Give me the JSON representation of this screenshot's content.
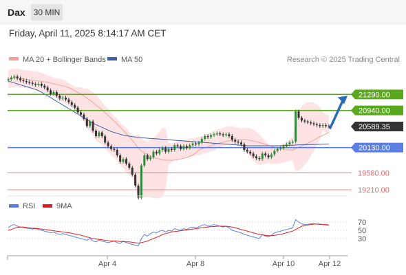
{
  "header": {
    "symbol": "Dax",
    "timeframe": "30 MIN",
    "timestamp": "Friday, April 11, 2025 8:14:17 AM CET"
  },
  "colors": {
    "ma20": "#f4a09b",
    "ma50": "#3c5fa8",
    "bands": "#fde3e3",
    "resistance": "#5aa81e",
    "support_blue": "#5b7fe0",
    "support_red": "#e06666",
    "current": "#333333",
    "candle_up": "#2d8a3a",
    "candle_down": "#333333",
    "arrow": "#2b6cb8",
    "rsi": "#5b7fe0",
    "rsi_ma": "#e02020"
  },
  "chart_data": [
    {
      "type": "line",
      "title": "Dax",
      "legend": [
        {
          "name": "MA 20 + Bollinger Bands",
          "color": "#f4a09b"
        },
        {
          "name": "MA 50",
          "color": "#3c5fa8"
        }
      ],
      "legend_placement": "top-left",
      "credit": "Research © 2025 Trading Central",
      "x_ticks": [
        "Apr 4",
        "Apr 8",
        "Apr 10",
        "Apr 12"
      ],
      "y_range": [
        19150,
        21850
      ],
      "levels": [
        {
          "label": "21290.00",
          "value": 21290,
          "kind": "resistance"
        },
        {
          "label": "20940.00",
          "value": 20940,
          "kind": "resistance"
        },
        {
          "label": "20589.35",
          "value": 20589.35,
          "kind": "current"
        },
        {
          "label": "20130.00",
          "value": 20130,
          "kind": "support_blue"
        },
        {
          "label": "19580.00",
          "value": 19580,
          "kind": "support_red"
        },
        {
          "label": "19210.00",
          "value": 19210,
          "kind": "support_red"
        }
      ],
      "close": [
        21620,
        21660,
        21680,
        21640,
        21600,
        21580,
        21560,
        21540,
        21520,
        21500,
        21520,
        21480,
        21440,
        21380,
        21300,
        21340,
        21260,
        21200,
        21220,
        21180,
        21120,
        21060,
        21000,
        20900,
        20850,
        20760,
        20600,
        20700,
        20500,
        20380,
        20460,
        20380,
        20240,
        20160,
        20100,
        20080,
        19960,
        19820,
        19880,
        19780,
        19690,
        19540,
        19300,
        19040,
        19740,
        19960,
        19880,
        19920,
        20040,
        20000,
        20080,
        20120,
        20040,
        20100,
        20080,
        20180,
        20160,
        20100,
        20160,
        20120,
        20180,
        20220,
        20200,
        20240,
        20320,
        20380,
        20360,
        20400,
        20420,
        20440,
        20420,
        20400,
        20420,
        20380,
        20300,
        20260,
        20240,
        20200,
        20080,
        20040,
        20000,
        19940,
        19900,
        19880,
        20000,
        19960,
        19920,
        19980,
        20060,
        20100,
        20120,
        20160,
        20200,
        20240,
        20260,
        20920,
        20780,
        20720,
        20700,
        20680,
        20660,
        20640,
        20620,
        20600,
        20620,
        20600,
        20590
      ],
      "ma50": [
        21580,
        21560,
        21540,
        21520,
        21500,
        21480,
        21460,
        21440,
        21420,
        21400,
        21370,
        21340,
        21300,
        21260,
        21220,
        21180,
        21140,
        21100,
        21060,
        21020,
        20980,
        20940,
        20900,
        20860,
        20820,
        20780,
        20740,
        20700,
        20660,
        20630,
        20600,
        20570,
        20540,
        20510,
        20480,
        20460,
        20440,
        20420,
        20400,
        20390,
        20380,
        20370,
        20360,
        20350,
        20345,
        20340,
        20335,
        20330,
        20325,
        20320,
        20315,
        20310,
        20305,
        20300,
        20295,
        20290,
        20285,
        20280,
        20275,
        20270,
        20265,
        20260,
        20255,
        20250,
        20245,
        20240,
        20235,
        20230,
        20225,
        20220,
        20215,
        20210,
        20205,
        20200,
        20195,
        20190,
        20185,
        20180,
        20175,
        20170,
        20170,
        20170,
        20170,
        20170,
        20170,
        20170,
        20170,
        20170,
        20170,
        20170,
        20172,
        20175,
        20178,
        20180,
        20182,
        20185,
        20188,
        20190,
        20192,
        20194,
        20196,
        20198,
        20200,
        20202,
        20204,
        20206,
        20208
      ],
      "rsi_ticks": [
        "70",
        "50",
        "30"
      ],
      "rsi_legend": [
        {
          "name": "RSI",
          "color": "#5b7fe0"
        },
        {
          "name": "9MA",
          "color": "#e02020"
        }
      ],
      "rsi": [
        56,
        62,
        64,
        60,
        58,
        57,
        55,
        54,
        53,
        54,
        52,
        50,
        48,
        46,
        44,
        46,
        42,
        40,
        42,
        40,
        38,
        36,
        34,
        32,
        30,
        28,
        26,
        30,
        24,
        22,
        26,
        24,
        22,
        20,
        22,
        24,
        20,
        18,
        24,
        20,
        18,
        16,
        14,
        12,
        30,
        40,
        36,
        42,
        46,
        44,
        48,
        50,
        46,
        50,
        48,
        54,
        52,
        50,
        54,
        52,
        56,
        58,
        56,
        58,
        62,
        64,
        60,
        62,
        64,
        62,
        60,
        58,
        60,
        56,
        50,
        48,
        46,
        44,
        40,
        38,
        36,
        34,
        32,
        30,
        40,
        36,
        34,
        38,
        44,
        46,
        48,
        50,
        52,
        54,
        56,
        76,
        70,
        66,
        64,
        64,
        66,
        66,
        65,
        64,
        64,
        63,
        62
      ],
      "rsi_ma": [
        50,
        52,
        55,
        57,
        58,
        58,
        57,
        56,
        55,
        55,
        54,
        53,
        52,
        51,
        50,
        49,
        48,
        47,
        46,
        45,
        44,
        43,
        41,
        40,
        38,
        36,
        34,
        32,
        30,
        29,
        28,
        27,
        26,
        25,
        24,
        24,
        24,
        23,
        23,
        22,
        22,
        21,
        20,
        19,
        20,
        22,
        24,
        27,
        30,
        33,
        36,
        40,
        42,
        44,
        46,
        47,
        48,
        49,
        50,
        51,
        52,
        53,
        54,
        55,
        56,
        57,
        58,
        59,
        59,
        60,
        60,
        60,
        60,
        59,
        58,
        56,
        54,
        52,
        50,
        48,
        46,
        44,
        42,
        40,
        39,
        38,
        37,
        37,
        38,
        39,
        40,
        42,
        44,
        46,
        48,
        52,
        56,
        60,
        62,
        63,
        64,
        65,
        65,
        65,
        64,
        64,
        63
      ]
    }
  ]
}
